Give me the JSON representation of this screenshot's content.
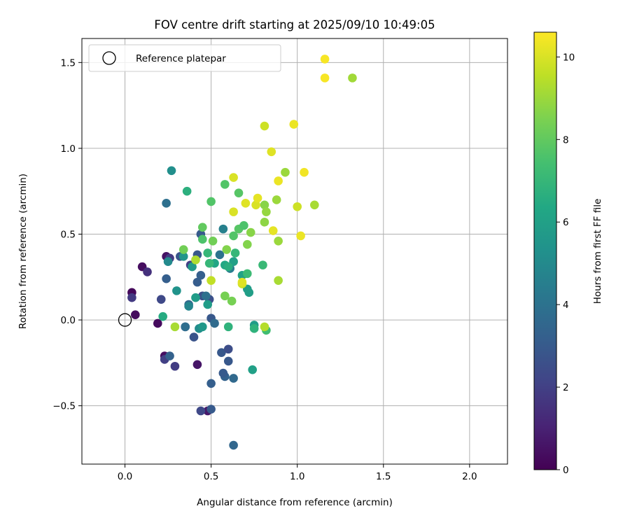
{
  "chart_data": {
    "type": "scatter",
    "title": "FOV centre drift starting at 2025/09/10 10:49:05",
    "xlabel": "Angular distance from reference (arcmin)",
    "ylabel": "Rotation from reference (arcmin)",
    "xlim": [
      -0.25,
      2.22
    ],
    "ylim": [
      -0.84,
      1.64
    ],
    "xticks": [
      0.0,
      0.5,
      1.0,
      1.5,
      2.0
    ],
    "xtick_labels": [
      "0.0",
      "0.5",
      "1.0",
      "1.5",
      "2.0"
    ],
    "yticks": [
      -0.5,
      0.0,
      0.5,
      1.0,
      1.5
    ],
    "ytick_labels": [
      "−0.5",
      "0.0",
      "0.5",
      "1.0",
      "1.5"
    ],
    "grid": true,
    "legend": {
      "placement": "top-left",
      "label": "Reference platepar"
    },
    "reference_point": {
      "x": 0.0,
      "y": 0.0
    },
    "colorbar": {
      "label": "Hours from first FF file",
      "min": 0,
      "max": 10.6,
      "ticks": [
        0,
        2,
        4,
        6,
        8,
        10
      ],
      "tick_labels": [
        "0",
        "2",
        "4",
        "6",
        "8",
        "10"
      ],
      "colormap": "viridis"
    },
    "points": [
      {
        "x": 0.04,
        "y": 0.16,
        "h": 0.2
      },
      {
        "x": 0.1,
        "y": 0.31,
        "h": 0.4
      },
      {
        "x": 0.06,
        "y": 0.03,
        "h": 0.3
      },
      {
        "x": 0.19,
        "y": -0.02,
        "h": 0.3
      },
      {
        "x": 0.24,
        "y": 0.37,
        "h": 0.5
      },
      {
        "x": 0.23,
        "y": -0.21,
        "h": 0.4
      },
      {
        "x": 0.42,
        "y": -0.26,
        "h": 0.6
      },
      {
        "x": 0.48,
        "y": -0.53,
        "h": 0.7
      },
      {
        "x": 0.04,
        "y": 0.13,
        "h": 1.8
      },
      {
        "x": 0.13,
        "y": 0.28,
        "h": 1.5
      },
      {
        "x": 0.21,
        "y": 0.12,
        "h": 2.3
      },
      {
        "x": 0.23,
        "y": -0.23,
        "h": 2.0
      },
      {
        "x": 0.29,
        "y": -0.27,
        "h": 1.9
      },
      {
        "x": 0.26,
        "y": 0.36,
        "h": 1.8
      },
      {
        "x": 0.38,
        "y": 0.32,
        "h": 2.0
      },
      {
        "x": 0.44,
        "y": -0.53,
        "h": 2.3
      },
      {
        "x": 0.35,
        "y": -0.04,
        "h": 2.5
      },
      {
        "x": 0.4,
        "y": -0.1,
        "h": 2.7
      },
      {
        "x": 0.24,
        "y": 0.24,
        "h": 3.2
      },
      {
        "x": 0.26,
        "y": -0.21,
        "h": 3.3
      },
      {
        "x": 0.32,
        "y": 0.37,
        "h": 2.8
      },
      {
        "x": 0.37,
        "y": 0.09,
        "h": 3.6
      },
      {
        "x": 0.42,
        "y": 0.22,
        "h": 3.1
      },
      {
        "x": 0.44,
        "y": 0.5,
        "h": 3.0
      },
      {
        "x": 0.45,
        "y": 0.14,
        "h": 2.6
      },
      {
        "x": 0.49,
        "y": 0.12,
        "h": 2.6
      },
      {
        "x": 0.5,
        "y": 0.01,
        "h": 2.9
      },
      {
        "x": 0.5,
        "y": -0.37,
        "h": 3.2
      },
      {
        "x": 0.5,
        "y": -0.52,
        "h": 3.0
      },
      {
        "x": 0.56,
        "y": -0.19,
        "h": 2.9
      },
      {
        "x": 0.6,
        "y": -0.17,
        "h": 2.5
      },
      {
        "x": 0.6,
        "y": -0.24,
        "h": 2.9
      },
      {
        "x": 0.58,
        "y": -0.33,
        "h": 3.3
      },
      {
        "x": 0.57,
        "y": -0.31,
        "h": 3.0
      },
      {
        "x": 0.63,
        "y": -0.34,
        "h": 3.6
      },
      {
        "x": 0.63,
        "y": -0.73,
        "h": 3.5
      },
      {
        "x": 0.24,
        "y": 0.68,
        "h": 3.9
      },
      {
        "x": 0.35,
        "y": -0.04,
        "h": 3.8
      },
      {
        "x": 0.42,
        "y": 0.38,
        "h": 2.9
      },
      {
        "x": 0.44,
        "y": 0.26,
        "h": 3.2
      },
      {
        "x": 0.47,
        "y": 0.14,
        "h": 3.9
      },
      {
        "x": 0.52,
        "y": -0.02,
        "h": 3.7
      },
      {
        "x": 0.55,
        "y": 0.38,
        "h": 4.0
      },
      {
        "x": 0.57,
        "y": 0.53,
        "h": 4.6
      },
      {
        "x": 0.61,
        "y": 0.3,
        "h": 4.5
      },
      {
        "x": 0.27,
        "y": 0.87,
        "h": 5.2
      },
      {
        "x": 0.25,
        "y": 0.34,
        "h": 5.0
      },
      {
        "x": 0.3,
        "y": 0.17,
        "h": 5.4
      },
      {
        "x": 0.34,
        "y": 0.37,
        "h": 5.5
      },
      {
        "x": 0.37,
        "y": 0.08,
        "h": 4.8
      },
      {
        "x": 0.39,
        "y": 0.31,
        "h": 5.7
      },
      {
        "x": 0.41,
        "y": 0.13,
        "h": 5.8
      },
      {
        "x": 0.43,
        "y": -0.05,
        "h": 5.1
      },
      {
        "x": 0.45,
        "y": -0.04,
        "h": 5.6
      },
      {
        "x": 0.48,
        "y": 0.09,
        "h": 5.8
      },
      {
        "x": 0.52,
        "y": 0.33,
        "h": 6.2
      },
      {
        "x": 0.58,
        "y": 0.32,
        "h": 6.3
      },
      {
        "x": 0.63,
        "y": 0.34,
        "h": 6.0
      },
      {
        "x": 0.68,
        "y": 0.26,
        "h": 6.1
      },
      {
        "x": 0.71,
        "y": 0.18,
        "h": 5.8
      },
      {
        "x": 0.72,
        "y": 0.16,
        "h": 5.9
      },
      {
        "x": 0.75,
        "y": -0.03,
        "h": 5.8
      },
      {
        "x": 0.74,
        "y": -0.29,
        "h": 6.0
      },
      {
        "x": 0.36,
        "y": 0.75,
        "h": 6.7
      },
      {
        "x": 0.22,
        "y": 0.02,
        "h": 6.5
      },
      {
        "x": 0.48,
        "y": 0.39,
        "h": 7.0
      },
      {
        "x": 0.49,
        "y": 0.33,
        "h": 7.0
      },
      {
        "x": 0.6,
        "y": 0.31,
        "h": 6.6
      },
      {
        "x": 0.6,
        "y": -0.04,
        "h": 6.8
      },
      {
        "x": 0.64,
        "y": 0.39,
        "h": 7.0
      },
      {
        "x": 0.71,
        "y": 0.27,
        "h": 7.2
      },
      {
        "x": 0.75,
        "y": -0.05,
        "h": 6.8
      },
      {
        "x": 0.8,
        "y": 0.32,
        "h": 7.1
      },
      {
        "x": 0.82,
        "y": -0.06,
        "h": 7.3
      },
      {
        "x": 0.45,
        "y": 0.47,
        "h": 7.6
      },
      {
        "x": 0.5,
        "y": 0.69,
        "h": 7.7
      },
      {
        "x": 0.58,
        "y": 0.79,
        "h": 7.7
      },
      {
        "x": 0.63,
        "y": 0.49,
        "h": 7.7
      },
      {
        "x": 0.66,
        "y": 0.53,
        "h": 7.8
      },
      {
        "x": 0.66,
        "y": 0.74,
        "h": 7.8
      },
      {
        "x": 0.69,
        "y": 0.55,
        "h": 7.6
      },
      {
        "x": 0.45,
        "y": 0.54,
        "h": 8.0
      },
      {
        "x": 0.34,
        "y": 0.41,
        "h": 8.3
      },
      {
        "x": 0.51,
        "y": 0.46,
        "h": 8.3
      },
      {
        "x": 0.59,
        "y": 0.41,
        "h": 8.6
      },
      {
        "x": 0.58,
        "y": 0.14,
        "h": 8.4
      },
      {
        "x": 0.62,
        "y": 0.11,
        "h": 8.4
      },
      {
        "x": 0.71,
        "y": 0.44,
        "h": 8.6
      },
      {
        "x": 0.73,
        "y": 0.51,
        "h": 8.7
      },
      {
        "x": 0.81,
        "y": 0.67,
        "h": 8.7
      },
      {
        "x": 0.81,
        "y": 0.57,
        "h": 8.8
      },
      {
        "x": 0.82,
        "y": 0.63,
        "h": 8.9
      },
      {
        "x": 0.88,
        "y": 0.7,
        "h": 9.0
      },
      {
        "x": 0.89,
        "y": 0.46,
        "h": 9.0
      },
      {
        "x": 0.89,
        "y": 0.23,
        "h": 9.2
      },
      {
        "x": 0.93,
        "y": 0.86,
        "h": 9.0
      },
      {
        "x": 1.1,
        "y": 0.67,
        "h": 9.2
      },
      {
        "x": 1.32,
        "y": 1.41,
        "h": 9.1
      },
      {
        "x": 0.29,
        "y": -0.04,
        "h": 9.2
      },
      {
        "x": 0.41,
        "y": 0.35,
        "h": 9.3
      },
      {
        "x": 0.5,
        "y": 0.23,
        "h": 9.6
      },
      {
        "x": 0.81,
        "y": 1.13,
        "h": 9.8
      },
      {
        "x": 0.81,
        "y": -0.04,
        "h": 9.4
      },
      {
        "x": 0.68,
        "y": 0.21,
        "h": 9.8
      },
      {
        "x": 1.0,
        "y": 0.66,
        "h": 9.8
      },
      {
        "x": 0.63,
        "y": 0.63,
        "h": 10.0
      },
      {
        "x": 0.63,
        "y": 0.83,
        "h": 10.0
      },
      {
        "x": 0.7,
        "y": 0.68,
        "h": 10.1
      },
      {
        "x": 0.76,
        "y": 0.67,
        "h": 10.0
      },
      {
        "x": 0.77,
        "y": 0.71,
        "h": 10.2
      },
      {
        "x": 0.85,
        "y": 0.98,
        "h": 10.1
      },
      {
        "x": 0.86,
        "y": 0.52,
        "h": 10.2
      },
      {
        "x": 0.89,
        "y": 0.81,
        "h": 10.3
      },
      {
        "x": 0.98,
        "y": 1.14,
        "h": 10.3
      },
      {
        "x": 1.02,
        "y": 0.49,
        "h": 10.3
      },
      {
        "x": 1.04,
        "y": 0.86,
        "h": 10.4
      },
      {
        "x": 1.16,
        "y": 1.52,
        "h": 10.5
      },
      {
        "x": 1.16,
        "y": 1.41,
        "h": 10.5
      },
      {
        "x": 0.68,
        "y": 0.22,
        "h": 10.1
      }
    ]
  }
}
